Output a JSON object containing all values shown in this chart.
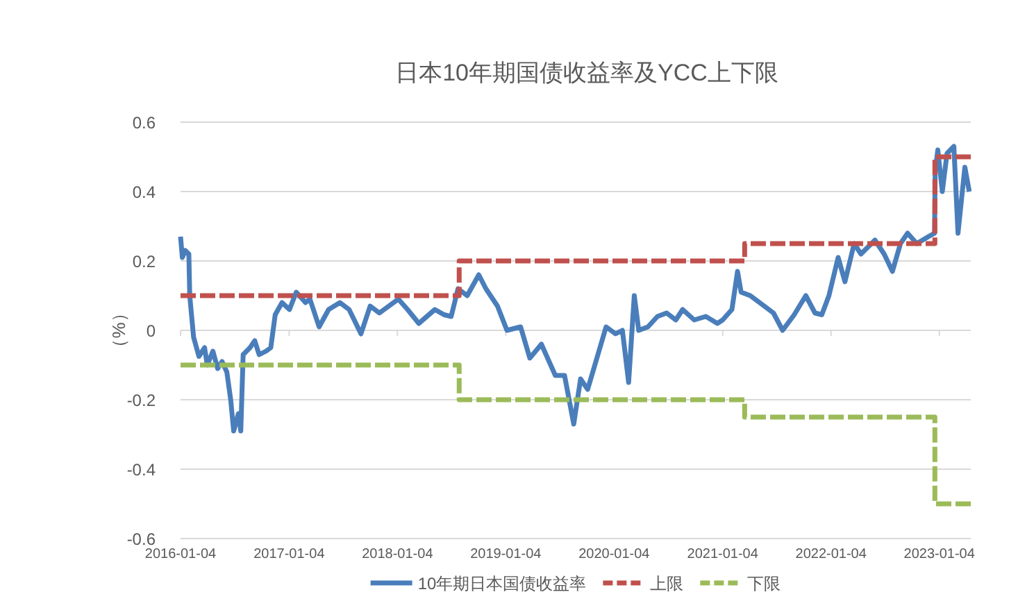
{
  "chart_data": {
    "type": "line",
    "title": "日本10年期国债收益率及YCC上下限",
    "ylabel": "（%）",
    "xlim": [
      "2016-01-04",
      "2023-04-20"
    ],
    "xticks": [
      "2016-01-04",
      "2017-01-04",
      "2018-01-04",
      "2019-01-04",
      "2020-01-04",
      "2021-01-04",
      "2022-01-04",
      "2023-01-04"
    ],
    "ylim": [
      -0.6,
      0.6
    ],
    "yticks": [
      -0.6,
      -0.4,
      -0.2,
      0,
      0.2,
      0.4,
      0.6
    ],
    "grid": "y",
    "legend": "bottom",
    "series": [
      {
        "name": "10年期日本国债收益率",
        "color": "#4a7ebb",
        "line_style": "solid",
        "x": [
          "2016-01-04",
          "2016-01-10",
          "2016-01-20",
          "2016-02-01",
          "2016-02-04",
          "2016-02-17",
          "2016-03-06",
          "2016-03-25",
          "2016-04-03",
          "2016-04-22",
          "2016-05-08",
          "2016-05-23",
          "2016-06-08",
          "2016-06-21",
          "2016-07-01",
          "2016-07-17",
          "2016-07-25",
          "2016-08-02",
          "2016-08-25",
          "2016-09-10",
          "2016-09-25",
          "2016-10-18",
          "2016-11-03",
          "2016-11-18",
          "2016-12-11",
          "2017-01-05",
          "2017-01-28",
          "2017-02-28",
          "2017-03-15",
          "2017-04-15",
          "2017-05-17",
          "2017-06-24",
          "2017-07-25",
          "2017-09-03",
          "2017-10-04",
          "2017-11-04",
          "2018-01-07",
          "2018-02-07",
          "2018-03-17",
          "2018-05-10",
          "2018-06-10",
          "2018-07-04",
          "2018-07-27",
          "2018-08-27",
          "2018-10-05",
          "2018-10-29",
          "2018-12-07",
          "2019-01-08",
          "2019-02-23",
          "2019-03-26",
          "2019-05-04",
          "2019-06-20",
          "2019-07-21",
          "2019-08-21",
          "2019-09-13",
          "2019-10-07",
          "2019-11-07",
          "2019-12-08",
          "2020-01-09",
          "2020-02-01",
          "2020-02-22",
          "2020-03-12",
          "2020-03-27",
          "2020-04-27",
          "2020-05-29",
          "2020-06-29",
          "2020-07-30",
          "2020-08-22",
          "2020-09-30",
          "2020-11-08",
          "2020-12-17",
          "2021-01-04",
          "2021-02-04",
          "2021-02-23",
          "2021-03-07",
          "2021-04-07",
          "2021-05-24",
          "2021-06-24",
          "2021-07-25",
          "2021-09-02",
          "2021-10-11",
          "2021-11-11",
          "2021-12-04",
          "2021-12-28",
          "2022-01-28",
          "2022-02-20",
          "2022-03-23",
          "2022-04-15",
          "2022-06-01",
          "2022-07-02",
          "2022-07-30",
          "2022-08-26",
          "2022-09-19",
          "2022-10-20",
          "2022-11-28",
          "2022-12-19",
          "2022-12-21",
          "2022-12-30",
          "2023-01-14",
          "2023-01-30",
          "2023-02-22",
          "2023-03-08",
          "2023-03-31",
          "2023-04-15"
        ],
        "values": [
          0.27,
          0.21,
          0.23,
          0.22,
          0.1,
          -0.02,
          -0.075,
          -0.05,
          -0.1,
          -0.06,
          -0.11,
          -0.09,
          -0.12,
          -0.2,
          -0.29,
          -0.24,
          -0.29,
          -0.07,
          -0.05,
          -0.03,
          -0.07,
          -0.06,
          -0.05,
          0.045,
          0.08,
          0.06,
          0.11,
          0.08,
          0.09,
          0.01,
          0.06,
          0.08,
          0.06,
          -0.01,
          0.07,
          0.05,
          0.09,
          0.06,
          0.02,
          0.06,
          0.045,
          0.04,
          0.12,
          0.1,
          0.16,
          0.12,
          0.07,
          0.0,
          0.01,
          -0.08,
          -0.04,
          -0.13,
          -0.13,
          -0.27,
          -0.14,
          -0.17,
          -0.08,
          0.01,
          -0.01,
          0.0,
          -0.15,
          0.1,
          0.0,
          0.01,
          0.04,
          0.05,
          0.03,
          0.06,
          0.03,
          0.04,
          0.02,
          0.03,
          0.06,
          0.17,
          0.11,
          0.1,
          0.07,
          0.05,
          0.0,
          0.045,
          0.1,
          0.05,
          0.045,
          0.1,
          0.21,
          0.14,
          0.25,
          0.22,
          0.26,
          0.22,
          0.17,
          0.25,
          0.28,
          0.25,
          0.27,
          0.28,
          0.46,
          0.52,
          0.4,
          0.51,
          0.53,
          0.28,
          0.47,
          0.4
        ]
      },
      {
        "name": "上限",
        "color": "#c0504d",
        "line_style": "dashed",
        "x": [
          "2016-01-04",
          "2018-07-31",
          "2018-07-31",
          "2021-03-19",
          "2021-03-19",
          "2022-12-20",
          "2022-12-20",
          "2023-04-20"
        ],
        "values": [
          0.1,
          0.1,
          0.2,
          0.2,
          0.25,
          0.25,
          0.5,
          0.5
        ]
      },
      {
        "name": "下限",
        "color": "#9bbb59",
        "line_style": "dashed",
        "x": [
          "2016-01-04",
          "2018-07-31",
          "2018-07-31",
          "2021-03-19",
          "2021-03-19",
          "2022-12-20",
          "2022-12-20",
          "2023-04-20"
        ],
        "values": [
          -0.1,
          -0.1,
          -0.2,
          -0.2,
          -0.25,
          -0.25,
          -0.5,
          -0.5
        ]
      }
    ]
  }
}
